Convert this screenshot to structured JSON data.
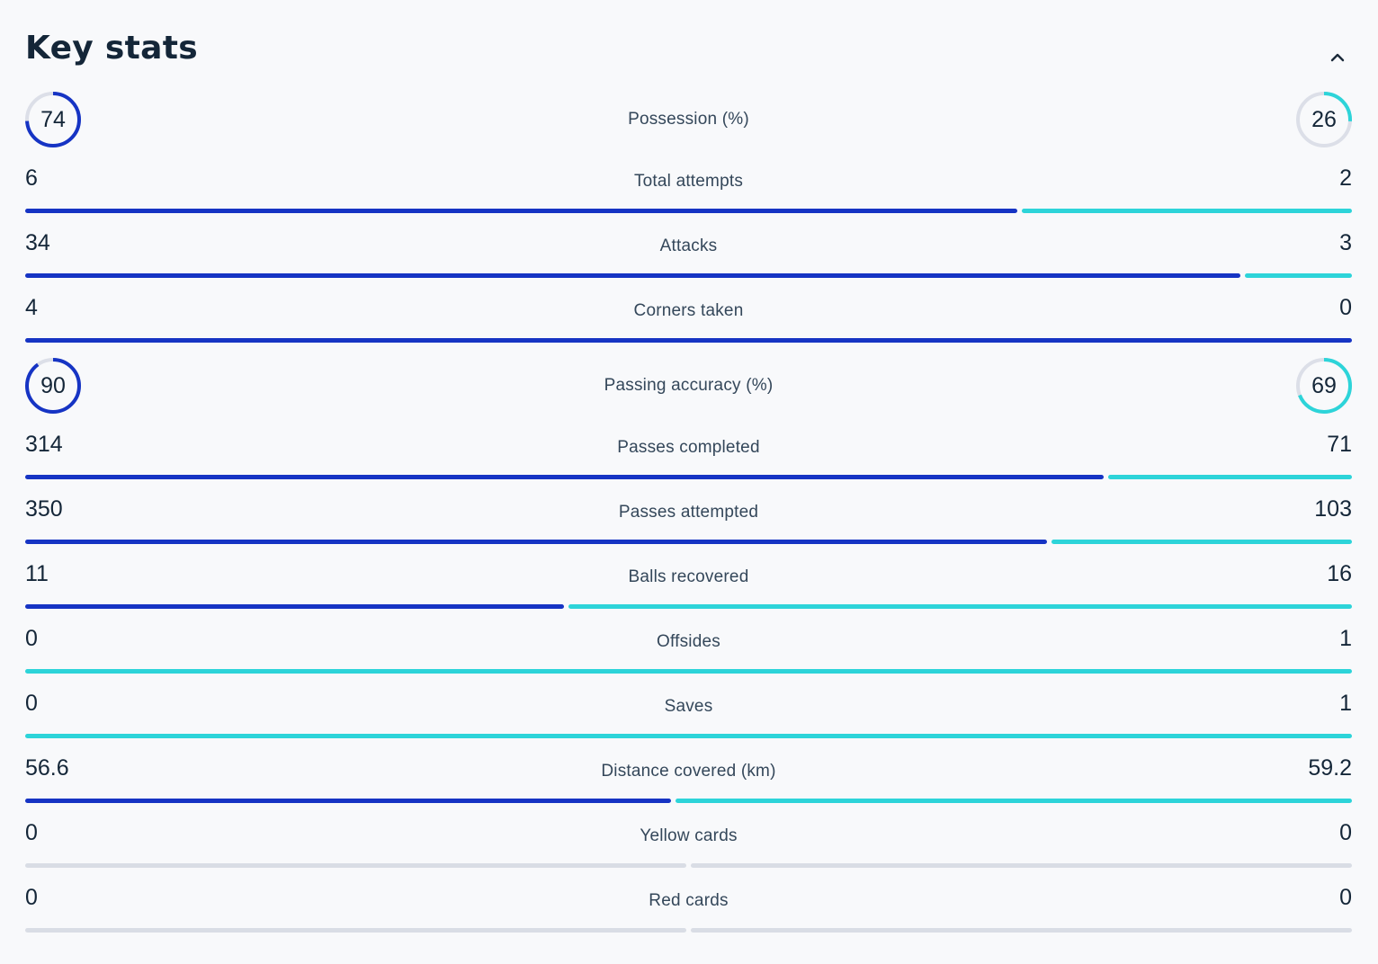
{
  "title": "Key stats",
  "colors": {
    "home": "#1634c4",
    "away": "#2dd4d9",
    "neutral": "#d9dde5",
    "ring_track": "#dcdfe8"
  },
  "icons": {
    "collapse": "chevron-up-icon"
  },
  "stats": [
    {
      "label": "Possession (%)",
      "home": "74",
      "away": "26",
      "kind": "ring",
      "home_value": 74,
      "away_value": 26
    },
    {
      "label": "Total attempts",
      "home": "6",
      "away": "2",
      "kind": "bar",
      "home_value": 6,
      "away_value": 2
    },
    {
      "label": "Attacks",
      "home": "34",
      "away": "3",
      "kind": "bar",
      "home_value": 34,
      "away_value": 3
    },
    {
      "label": "Corners taken",
      "home": "4",
      "away": "0",
      "kind": "bar",
      "home_value": 4,
      "away_value": 0
    },
    {
      "label": "Passing accuracy (%)",
      "home": "90",
      "away": "69",
      "kind": "ring",
      "home_value": 90,
      "away_value": 69
    },
    {
      "label": "Passes completed",
      "home": "314",
      "away": "71",
      "kind": "bar",
      "home_value": 314,
      "away_value": 71
    },
    {
      "label": "Passes attempted",
      "home": "350",
      "away": "103",
      "kind": "bar",
      "home_value": 350,
      "away_value": 103
    },
    {
      "label": "Balls recovered",
      "home": "11",
      "away": "16",
      "kind": "bar",
      "home_value": 11,
      "away_value": 16
    },
    {
      "label": "Offsides",
      "home": "0",
      "away": "1",
      "kind": "bar",
      "home_value": 0,
      "away_value": 1
    },
    {
      "label": "Saves",
      "home": "0",
      "away": "1",
      "kind": "bar",
      "home_value": 0,
      "away_value": 1
    },
    {
      "label": "Distance covered (km)",
      "home": "56.6",
      "away": "59.2",
      "kind": "bar",
      "home_value": 56.6,
      "away_value": 59.2
    },
    {
      "label": "Yellow cards",
      "home": "0",
      "away": "0",
      "kind": "bar",
      "home_value": 0,
      "away_value": 0
    },
    {
      "label": "Red cards",
      "home": "0",
      "away": "0",
      "kind": "bar",
      "home_value": 0,
      "away_value": 0
    }
  ]
}
